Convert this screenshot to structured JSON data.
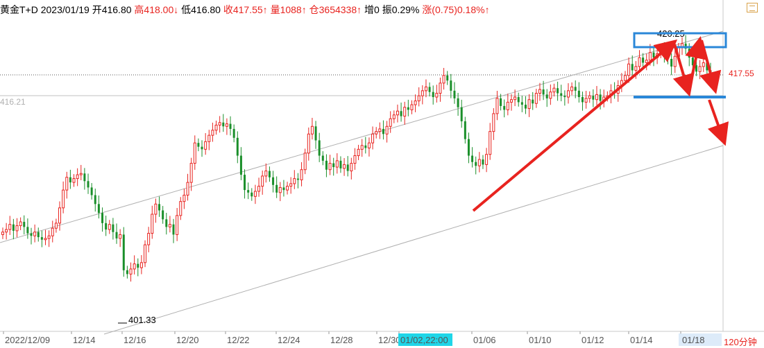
{
  "header": {
    "instrument": "黄金T+D",
    "date": "2023/01/19",
    "open": "开416.80",
    "high": "高418.00↓",
    "low": "低416.80",
    "close": "收417.55↑",
    "volume": "量1088↑",
    "open_interest": "仓3654338↑",
    "oi_change": "增0",
    "amplitude": "振0.29%",
    "change": "涨(0.75)0.18%↑"
  },
  "price_right": "417.55",
  "price_left": "416.21",
  "period": "120分钟",
  "annotations": {
    "high_label": "420.25",
    "low_label": "401.33"
  },
  "colors": {
    "up": "#e8231f",
    "down": "#1a8f2a",
    "arrow": "#e8231f",
    "box": "#2a87d8",
    "cursor_bg": "#1fd6e8"
  },
  "chart_data": {
    "type": "candlestick",
    "title": "",
    "xlabel": "",
    "ylabel": "",
    "ylim": [
      397.5,
      422.0
    ],
    "x_ticks": [
      "2022/12/09",
      "12/14",
      "12/16",
      "12/20",
      "12/22",
      "12/24",
      "12/28",
      "12/30",
      "01/02,22:00",
      "01/06",
      "01/10",
      "01/12",
      "01/14",
      "01/18"
    ],
    "cursor_label": "01/02,22:00",
    "close_series": [
      405.3,
      405.5,
      405.9,
      405.4,
      405.8,
      406.1,
      405.7,
      405.2,
      405.0,
      405.3,
      404.9,
      404.7,
      404.8,
      405.0,
      405.6,
      406.0,
      407.2,
      408.6,
      409.6,
      409.2,
      409.5,
      409.8,
      409.9,
      409.3,
      408.8,
      408.2,
      407.5,
      406.8,
      406.0,
      405.5,
      405.9,
      405.3,
      404.8,
      405.1,
      402.3,
      402.0,
      402.4,
      402.8,
      402.5,
      402.9,
      404.3,
      405.2,
      406.7,
      407.5,
      407.0,
      406.3,
      405.7,
      405.9,
      405.1,
      406.6,
      407.7,
      408.2,
      409.2,
      410.7,
      412.3,
      412.0,
      411.8,
      412.4,
      412.9,
      413.3,
      413.7,
      413.9,
      413.6,
      413.8,
      413.4,
      412.7,
      411.3,
      409.8,
      408.6,
      408.4,
      408.1,
      408.5,
      408.9,
      409.7,
      410.1,
      409.6,
      409.0,
      408.4,
      408.8,
      408.6,
      408.9,
      409.1,
      409.5,
      409.4,
      410.2,
      411.5,
      413.0,
      413.6,
      412.5,
      411.3,
      410.9,
      410.2,
      410.7,
      410.4,
      410.9,
      410.3,
      410.6,
      410.1,
      410.7,
      411.3,
      411.8,
      412.1,
      411.9,
      412.3,
      413.0,
      413.2,
      413.4,
      413.0,
      413.6,
      414.2,
      414.5,
      414.8,
      414.4,
      415.1,
      414.9,
      415.3,
      415.6,
      416.0,
      416.4,
      416.7,
      416.3,
      415.9,
      416.2,
      417.0,
      417.6,
      417.2,
      416.4,
      415.8,
      415.1,
      414.0,
      412.6,
      411.3,
      410.8,
      410.5,
      411.0,
      410.6,
      411.4,
      413.2,
      414.6,
      415.8,
      415.2,
      414.9,
      415.5,
      415.7,
      415.9,
      415.5,
      415.3,
      415.0,
      415.7,
      415.4,
      416.2,
      416.5,
      416.1,
      415.8,
      416.3,
      416.6,
      416.2,
      416.0,
      415.9,
      416.4,
      416.7,
      416.4,
      415.9,
      415.5,
      415.8,
      416.0,
      415.7,
      416.1,
      415.6,
      415.9,
      416.0,
      416.4,
      416.2,
      416.8,
      417.2,
      417.6,
      418.5,
      418.0,
      418.3,
      419.0,
      418.6,
      418.8,
      419.4,
      419.0,
      419.3,
      419.7,
      419.2,
      418.9,
      418.3,
      419.1,
      419.8,
      420.1,
      419.7,
      419.0,
      418.4,
      417.9,
      418.3,
      418.6,
      418.0,
      417.5
    ]
  }
}
